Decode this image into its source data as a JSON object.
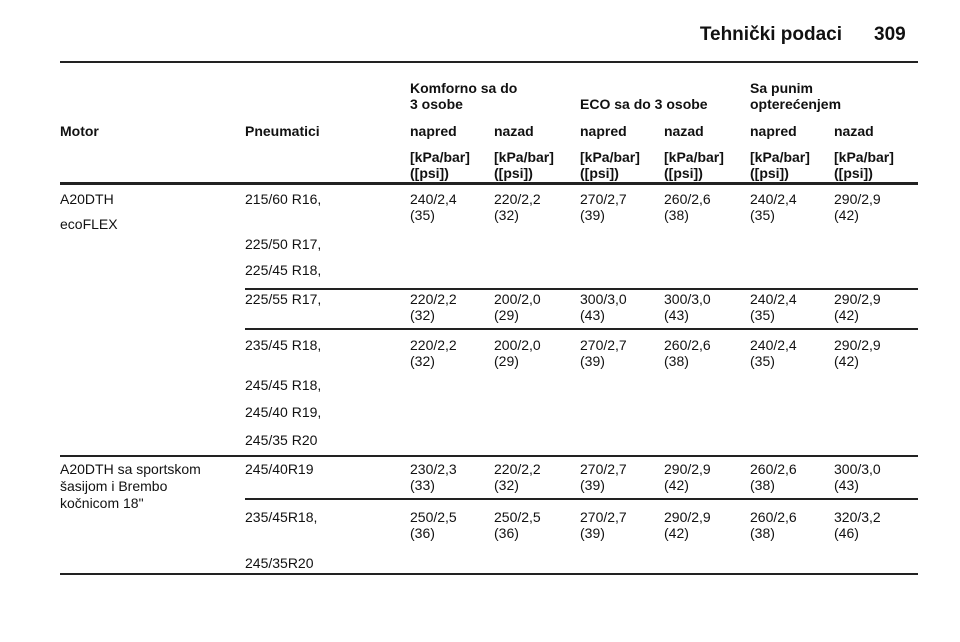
{
  "header": {
    "title": "Tehnički podaci",
    "page": "309"
  },
  "table": {
    "group_headers": [
      [
        "Komforno sa do",
        "3 osobe"
      ],
      [
        "ECO sa do 3 osobe"
      ],
      [
        "Sa punim",
        "opterećenjem"
      ]
    ],
    "columns": [
      "Motor",
      "Pneumatici",
      "napred",
      "nazad",
      "napred",
      "nazad",
      "napred",
      "nazad"
    ],
    "units": [
      "[kPa/bar]",
      "([psi])"
    ],
    "groups": [
      {
        "motor": [
          "A20DTH",
          "ecoFLEX"
        ],
        "rows": [
          {
            "tires": [
              "215/60 R16,",
              "225/50 R17,",
              "225/45 R18,"
            ],
            "values": [
              [
                "240/2,4",
                "(35)"
              ],
              [
                "220/2,2",
                "(32)"
              ],
              [
                "270/2,7",
                "(39)"
              ],
              [
                "260/2,6",
                "(38)"
              ],
              [
                "240/2,4",
                "(35)"
              ],
              [
                "290/2,9",
                "(42)"
              ]
            ]
          },
          {
            "tires": [
              "225/55 R17,"
            ],
            "values": [
              [
                "220/2,2",
                "(32)"
              ],
              [
                "200/2,0",
                "(29)"
              ],
              [
                "300/3,0",
                "(43)"
              ],
              [
                "300/3,0",
                "(43)"
              ],
              [
                "240/2,4",
                "(35)"
              ],
              [
                "290/2,9",
                "(42)"
              ]
            ]
          },
          {
            "tires": [
              "235/45 R18,",
              "245/45 R18,",
              "245/40 R19,",
              "245/35 R20"
            ],
            "values": [
              [
                "220/2,2",
                "(32)"
              ],
              [
                "200/2,0",
                "(29)"
              ],
              [
                "270/2,7",
                "(39)"
              ],
              [
                "260/2,6",
                "(38)"
              ],
              [
                "240/2,4",
                "(35)"
              ],
              [
                "290/2,9",
                "(42)"
              ]
            ]
          }
        ]
      },
      {
        "motor": [
          "A20DTH sa sportskom",
          "šasijom i Brembo",
          "kočnicom 18\""
        ],
        "rows": [
          {
            "tires": [
              "245/40R19"
            ],
            "values": [
              [
                "230/2,3",
                "(33)"
              ],
              [
                "220/2,2",
                "(32)"
              ],
              [
                "270/2,7",
                "(39)"
              ],
              [
                "290/2,9",
                "(42)"
              ],
              [
                "260/2,6",
                "(38)"
              ],
              [
                "300/3,0",
                "(43)"
              ]
            ]
          },
          {
            "tires": [
              "235/45R18,",
              "245/35R20"
            ],
            "values": [
              [
                "250/2,5",
                "(36)"
              ],
              [
                "250/2,5",
                "(36)"
              ],
              [
                "270/2,7",
                "(39)"
              ],
              [
                "290/2,9",
                "(42)"
              ],
              [
                "260/2,6",
                "(38)"
              ],
              [
                "320/3,2",
                "(46)"
              ]
            ]
          }
        ]
      }
    ]
  }
}
